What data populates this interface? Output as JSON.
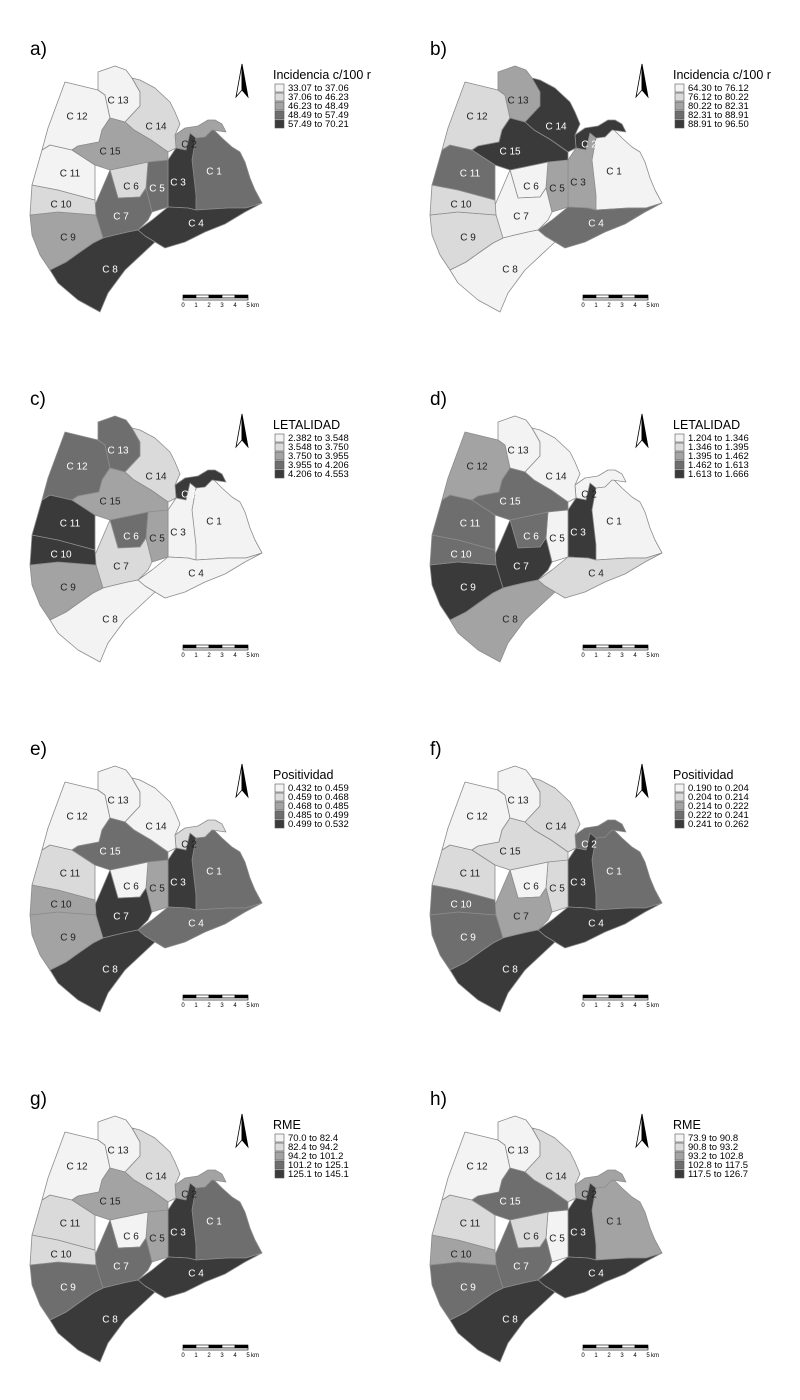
{
  "figure": {
    "scale_bar": {
      "ticks": [
        "0",
        "1",
        "2",
        "3",
        "4",
        "5"
      ],
      "unit": "km"
    },
    "comunas": [
      "C 1",
      "C 2",
      "C 3",
      "C 4",
      "C 5",
      "C 6",
      "C 7",
      "C 8",
      "C 9",
      "C 10",
      "C 11",
      "C 12",
      "C 13",
      "C 14",
      "C 15"
    ],
    "class_colors": [
      "#f3f3f3",
      "#dadada",
      "#a3a3a3",
      "#6e6e6e",
      "#3a3a3a"
    ],
    "panels": [
      {
        "letter": "a)",
        "legend_title": "Incidencia c/100 r",
        "classes": [
          "33.07 to 37.06",
          "37.06 to 46.23",
          "46.23 to 48.49",
          "48.49 to 57.49",
          "57.49 to 70.21"
        ],
        "comuna_class": [
          3,
          2,
          4,
          4,
          3,
          1,
          3,
          4,
          2,
          1,
          0,
          0,
          0,
          1,
          2
        ]
      },
      {
        "letter": "b)",
        "legend_title": "Incidencia c/100 r",
        "classes": [
          "64.30 to 76.12",
          "76.12 to 80.22",
          "80.22 to 82.31",
          "82.31 to 88.91",
          "88.91 to 96.50"
        ],
        "comuna_class": [
          0,
          4,
          2,
          3,
          2,
          0,
          0,
          0,
          1,
          1,
          3,
          1,
          2,
          4,
          4
        ]
      },
      {
        "letter": "c)",
        "legend_title": "LETALIDAD",
        "classes": [
          "2.382 to 3.548",
          "3.548 to 3.750",
          "3.750 to 3.955",
          "3.955 to 4.206",
          "4.206 to 4.553"
        ],
        "comuna_class": [
          0,
          4,
          0,
          0,
          2,
          3,
          1,
          0,
          2,
          4,
          4,
          3,
          3,
          1,
          2
        ]
      },
      {
        "letter": "d)",
        "legend_title": "LETALIDAD",
        "classes": [
          "1.204 to 1.346",
          "1.346 to 1.395",
          "1.395 to 1.462",
          "1.462 to 1.613",
          "1.613 to 1.666"
        ],
        "comuna_class": [
          0,
          0,
          4,
          1,
          0,
          3,
          4,
          2,
          4,
          3,
          3,
          2,
          0,
          0,
          3
        ]
      },
      {
        "letter": "e)",
        "legend_title": "Positividad",
        "classes": [
          "0.432 to 0.459",
          "0.459 to 0.468",
          "0.468 to 0.485",
          "0.485 to 0.499",
          "0.499 to 0.532"
        ],
        "comuna_class": [
          3,
          1,
          4,
          3,
          2,
          0,
          4,
          4,
          2,
          2,
          1,
          0,
          0,
          0,
          3
        ]
      },
      {
        "letter": "f)",
        "legend_title": "Positividad",
        "classes": [
          "0.190 to 0.204",
          "0.204 to 0.214",
          "0.214 to 0.222",
          "0.222 to 0.241",
          "0.241 to 0.262"
        ],
        "comuna_class": [
          3,
          3,
          4,
          4,
          1,
          0,
          2,
          4,
          3,
          3,
          1,
          0,
          0,
          1,
          1
        ]
      },
      {
        "letter": "g)",
        "legend_title": "RME",
        "classes": [
          "70.0 to 82.4",
          "82.4 to 94.2",
          "94.2 to 101.2",
          "101.2 to 125.1",
          "125.1 to 145.1"
        ],
        "comuna_class": [
          3,
          2,
          4,
          4,
          2,
          0,
          3,
          4,
          3,
          1,
          1,
          0,
          0,
          1,
          2
        ]
      },
      {
        "letter": "h)",
        "legend_title": "RME",
        "classes": [
          "73.9 to 90.8",
          "90.8 to 93.2",
          "93.2 to 102.8",
          "102.8 to 117.5",
          "117.5 to 126.7"
        ],
        "comuna_class": [
          2,
          2,
          4,
          4,
          0,
          1,
          3,
          4,
          3,
          2,
          1,
          0,
          0,
          1,
          3
        ]
      }
    ]
  }
}
